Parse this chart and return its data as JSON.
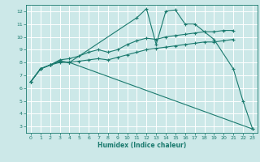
{
  "xlabel": "Humidex (Indice chaleur)",
  "bg_color": "#cce8e8",
  "grid_color": "#ffffff",
  "line_color": "#1a7a6e",
  "xlim": [
    -0.5,
    23.5
  ],
  "ylim": [
    2.5,
    12.5
  ],
  "xticks": [
    0,
    1,
    2,
    3,
    4,
    5,
    6,
    7,
    8,
    9,
    10,
    11,
    12,
    13,
    14,
    15,
    16,
    17,
    18,
    19,
    20,
    21,
    22,
    23
  ],
  "yticks": [
    3,
    4,
    5,
    6,
    7,
    8,
    9,
    10,
    11,
    12
  ],
  "lines": [
    {
      "x": [
        0,
        1,
        2,
        3,
        4,
        11,
        12,
        13,
        14,
        15,
        16,
        17,
        19,
        21,
        22,
        23
      ],
      "y": [
        6.5,
        7.5,
        7.8,
        8.1,
        8.0,
        11.5,
        12.2,
        9.4,
        12.0,
        12.1,
        11.0,
        11.0,
        9.8,
        7.5,
        5.0,
        2.8
      ]
    },
    {
      "x": [
        0,
        1,
        2,
        3,
        4,
        5,
        6,
        7,
        8,
        9,
        10,
        11,
        12,
        13,
        14,
        15,
        16,
        17,
        18,
        19,
        20,
        21
      ],
      "y": [
        6.5,
        7.5,
        7.8,
        8.2,
        8.3,
        8.5,
        8.8,
        9.0,
        8.8,
        9.0,
        9.4,
        9.7,
        9.9,
        9.8,
        10.0,
        10.1,
        10.2,
        10.3,
        10.4,
        10.4,
        10.5,
        10.5
      ]
    },
    {
      "x": [
        0,
        1,
        2,
        3,
        4,
        5,
        6,
        7,
        8,
        9,
        10,
        11,
        12,
        13,
        14,
        15,
        16,
        17,
        18,
        19,
        20,
        21
      ],
      "y": [
        6.5,
        7.5,
        7.8,
        8.0,
        8.0,
        8.1,
        8.2,
        8.3,
        8.2,
        8.4,
        8.6,
        8.8,
        9.0,
        9.1,
        9.2,
        9.3,
        9.4,
        9.5,
        9.6,
        9.6,
        9.7,
        9.8
      ]
    },
    {
      "x": [
        0,
        1,
        2,
        3,
        4,
        23
      ],
      "y": [
        6.5,
        7.5,
        7.8,
        8.1,
        8.0,
        2.8
      ]
    }
  ]
}
